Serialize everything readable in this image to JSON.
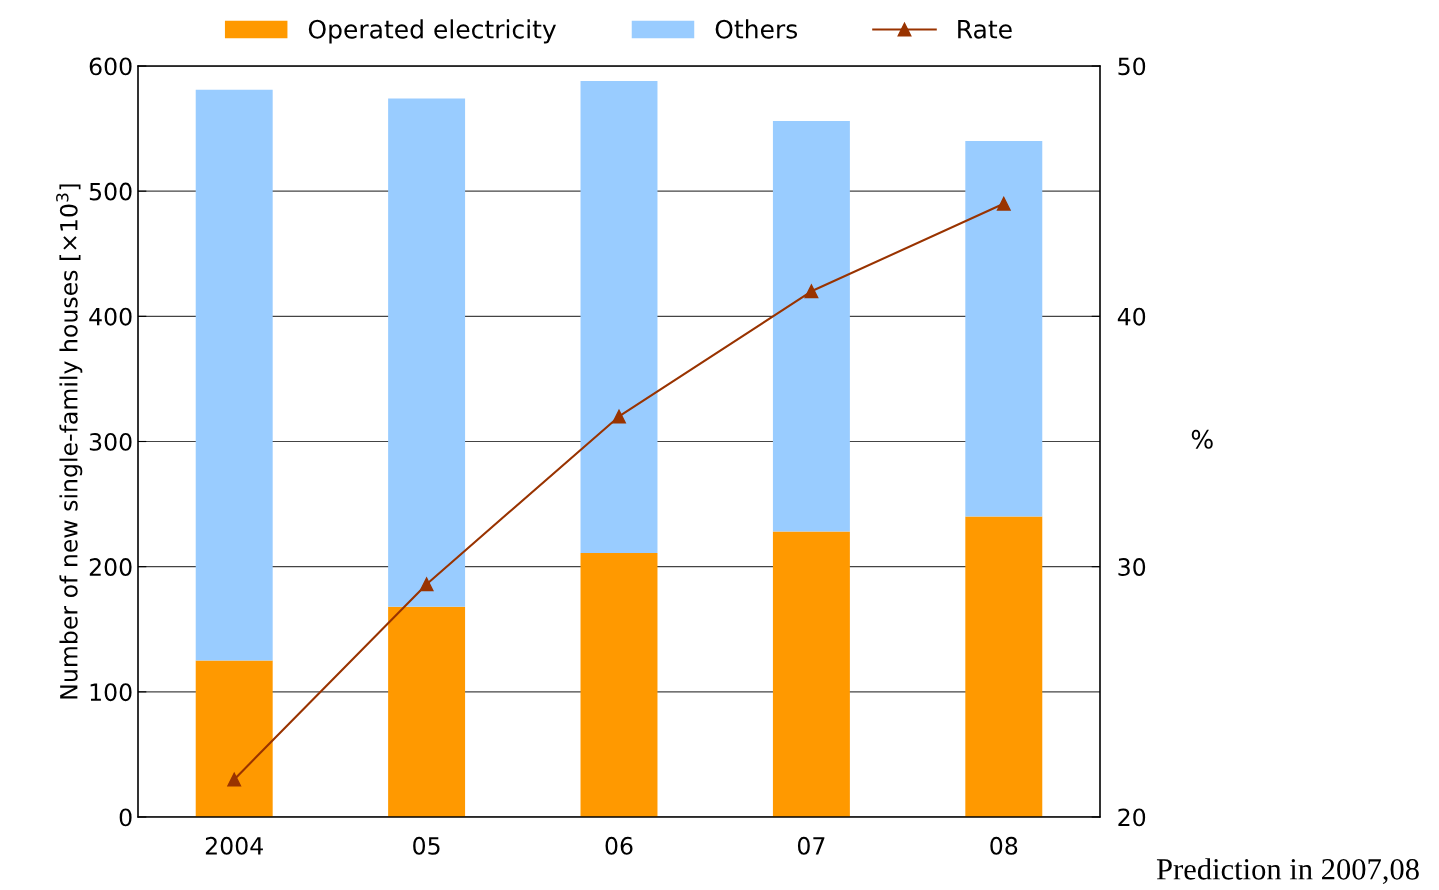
{
  "chart_data": {
    "type": "bar",
    "stacked": true,
    "categories": [
      "2004",
      "05",
      "06",
      "07",
      "08"
    ],
    "ylabel": "Number of new single-family houses [×10$^{3}$]",
    "y2label": "%",
    "ylim": [
      0,
      600
    ],
    "yticks": [
      0,
      100,
      200,
      300,
      400,
      500,
      600
    ],
    "y2lim": [
      20,
      50
    ],
    "y2ticks": [
      20,
      30,
      40,
      50
    ],
    "grid": "y",
    "legend": "top",
    "series": [
      {
        "name": "Operated electricity",
        "color": "#ff9900",
        "values": [
          125,
          168,
          211,
          228,
          240
        ]
      },
      {
        "name": "Others",
        "color": "#99ccff",
        "values": [
          456,
          406,
          377,
          328,
          300
        ]
      },
      {
        "name": "Rate",
        "type": "line",
        "axis": "y2",
        "color": "#993300",
        "marker": "triangle",
        "line_style": "solid",
        "values": [
          21.5,
          29.3,
          36.0,
          41.0,
          44.5
        ]
      }
    ],
    "annotations": [
      "Prediction in 2007,08"
    ]
  }
}
